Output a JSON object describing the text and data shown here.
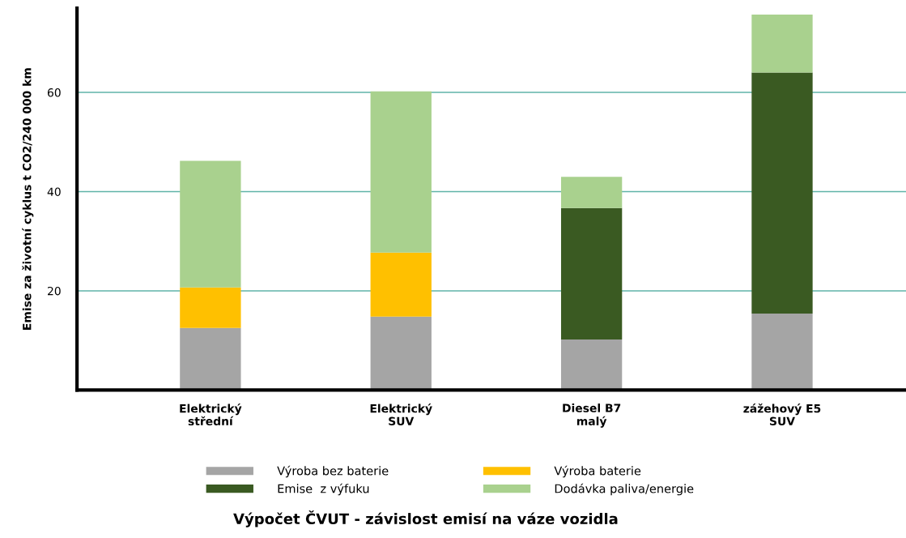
{
  "chart_data": {
    "type": "bar",
    "stacked": true,
    "title": "Výpočet ČVUT - závislost emisí na váze vozidla",
    "ylabel": "Emise za životní cyklus t CO2/240 000 km",
    "categories": [
      "Elektrický\nstřední",
      "Elektrický\nSUV",
      "Diesel B7\nmalý",
      "zážehový E5\nSUV"
    ],
    "series": [
      {
        "name": "Výroba bez baterie",
        "color": "#a5a5a5",
        "values": [
          12.5,
          14.8,
          10.2,
          15.4
        ]
      },
      {
        "name": "Emise  z výfuku",
        "color": "#3a5a22",
        "values": [
          null,
          null,
          26.5,
          48.6
        ]
      },
      {
        "name": "Výroba baterie",
        "color": "#ffc000",
        "values": [
          8.2,
          12.9,
          null,
          null
        ]
      },
      {
        "name": "Dodávka paliva/energie",
        "color": "#a9d18e",
        "values": [
          25.5,
          32.5,
          6.3,
          11.7
        ]
      }
    ],
    "ylim": [
      0,
      77
    ],
    "yticks": [
      20,
      40,
      60
    ],
    "grid": "y",
    "legend": "bottom"
  }
}
